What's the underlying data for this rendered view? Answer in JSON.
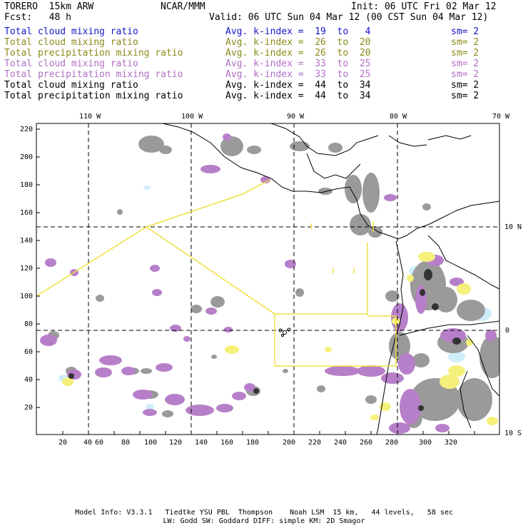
{
  "header": {
    "model": "TORERO  15km ARW",
    "center": "NCAR/MMM",
    "init": "Init: 06 UTC Fri 02 Mar 12",
    "fcst": "Fcst:   48 h",
    "valid": "Valid: 06 UTC Sun 04 Mar 12 (00 CST Sun 04 Mar 12)"
  },
  "legend": [
    {
      "field": "Total cloud mixing ratio",
      "kindex": "Avg. k-index =  19  to   4",
      "sm": "sm= 2",
      "color": "#1515c8"
    },
    {
      "field": "Total cloud mixing ratio",
      "kindex": "Avg. k-index =  26  to  20",
      "sm": "sm= 2",
      "color": "#8a8a18"
    },
    {
      "field": "Total precipitation mixing ratio",
      "kindex": "Avg. k-index =  26  to  20",
      "sm": "sm= 2",
      "color": "#8a8a18"
    },
    {
      "field": "Total cloud mixing ratio",
      "kindex": "Avg. k-index =  33  to  25",
      "sm": "sm= 2",
      "color": "#b16ec4"
    },
    {
      "field": "Total precipitation mixing ratio",
      "kindex": "Avg. k-index =  33  to  25",
      "sm": "sm= 2",
      "color": "#b16ec4"
    },
    {
      "field": "Total cloud mixing ratio",
      "kindex": "Avg. k-index =  44  to  34",
      "sm": "sm= 2",
      "color": "#000000"
    },
    {
      "field": "Total precipitation mixing ratio",
      "kindex": "Avg. k-index =  44  to  34",
      "sm": "sm= 2",
      "color": "#000000"
    }
  ],
  "axes": {
    "lon_labels": [
      "110 W",
      "100 W",
      "90 W",
      "80 W",
      "70 W"
    ],
    "lat_labels": [
      "10 N",
      "0",
      "10 S"
    ],
    "y_ticks": [
      "220",
      "200",
      "180",
      "160",
      "140",
      "120",
      "100",
      "80",
      "60",
      "40",
      "20"
    ],
    "x_ticks": [
      "20",
      "40",
      "60",
      "80",
      "100",
      "120",
      "140",
      "160",
      "180",
      "200",
      "220",
      "240",
      "260",
      "280",
      "300",
      "320"
    ]
  },
  "colors": {
    "cloud_gray": "#9a9a9a",
    "dark_core": "#333333",
    "purple": "#b77fc9",
    "yellow": "#f5f07a",
    "light_blue": "#cfeefa",
    "domain_line": "#f0e040"
  },
  "footer": {
    "line1": "Model Info: V3.3.1   Tiedtke YSU PBL  Thompson    Noah LSM  15 km,   44 levels,   58 sec",
    "line2": "LW: Godd SW: Goddard DIFF: simple KM: 2D Smagor"
  }
}
